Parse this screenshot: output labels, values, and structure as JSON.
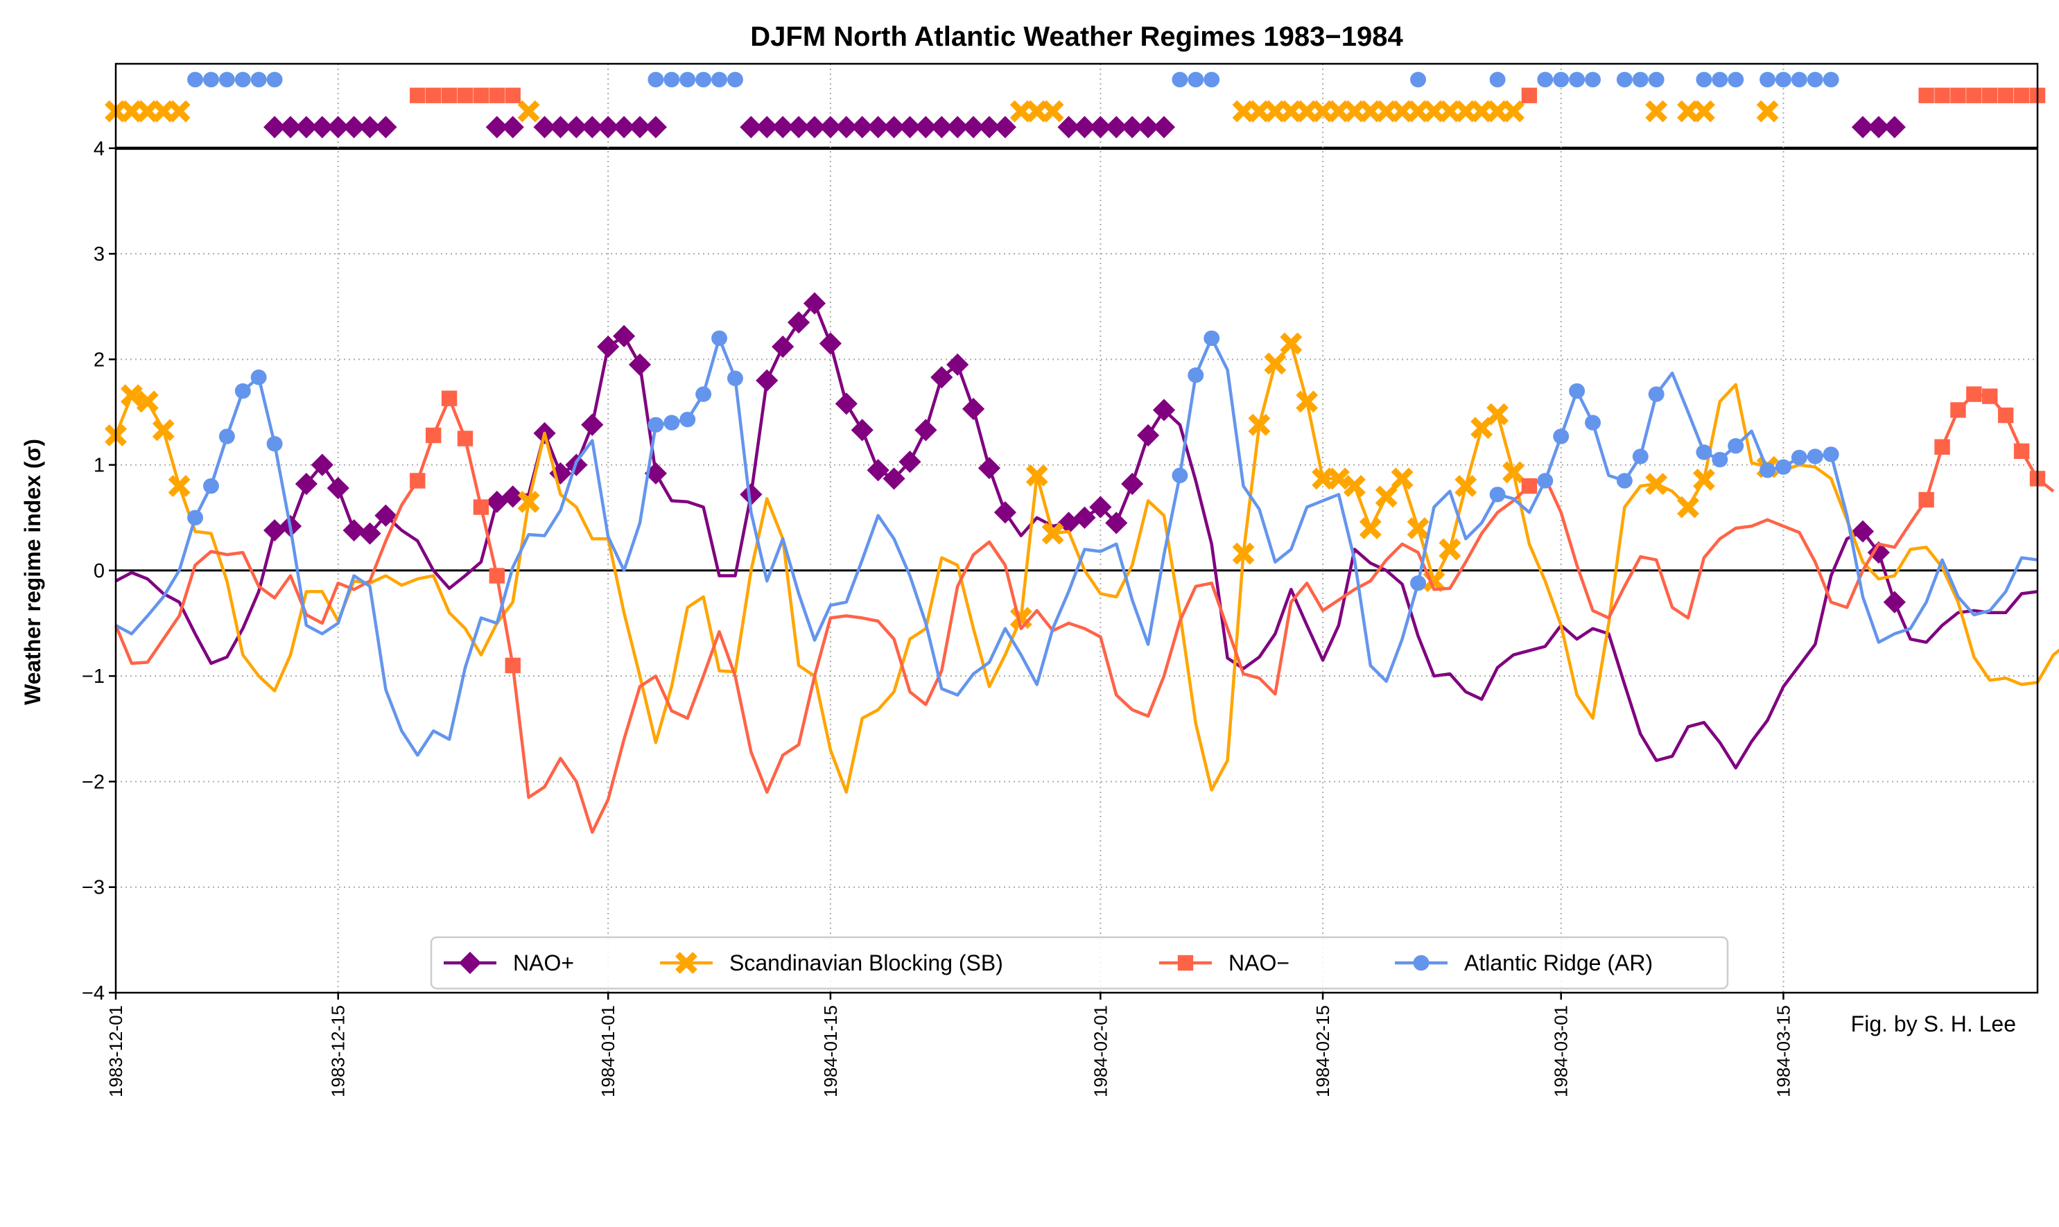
{
  "chart_data": {
    "type": "line",
    "title": "DJFM North Atlantic Weather Regimes 1983−1984",
    "xlabel": "",
    "ylabel": "Weather regime index (σ)",
    "ylim": [
      -4,
      4.8
    ],
    "yticks": [
      -4,
      -3,
      -2,
      -1,
      0,
      1,
      2,
      3,
      4
    ],
    "ytick_labels": [
      "−4",
      "−3",
      "−2",
      "−1",
      "0",
      "1",
      "2",
      "3",
      "4"
    ],
    "x_start": "1983-12-01",
    "n_days": 122,
    "xticks": [
      {
        "day": 0,
        "label": "1983-12-01"
      },
      {
        "day": 14,
        "label": "1983-12-15"
      },
      {
        "day": 31,
        "label": "1984-01-01"
      },
      {
        "day": 45,
        "label": "1984-01-15"
      },
      {
        "day": 62,
        "label": "1984-02-01"
      },
      {
        "day": 76,
        "label": "1984-02-15"
      },
      {
        "day": 91,
        "label": "1984-03-01"
      },
      {
        "day": 105,
        "label": "1984-03-15"
      }
    ],
    "grid": true,
    "legend_position": "bottom-center",
    "annotation": "Fig. by S. H. Lee",
    "series": [
      {
        "name": "NAO+",
        "key": "naop",
        "color": "#800080",
        "marker": "diamond",
        "strip_level": 4.2,
        "values": [
          -0.1,
          -0.02,
          -0.08,
          -0.22,
          -0.3,
          -0.6,
          -0.88,
          -0.82,
          -0.55,
          -0.2,
          0.38,
          0.42,
          0.82,
          1.0,
          0.78,
          0.38,
          0.35,
          0.52,
          0.38,
          0.28,
          0.0,
          -0.17,
          -0.05,
          0.08,
          0.65,
          0.7,
          0.72,
          1.3,
          0.92,
          1.0,
          1.38,
          2.12,
          2.22,
          1.95,
          0.92,
          0.66,
          0.65,
          0.6,
          -0.05,
          -0.05,
          0.72,
          1.8,
          2.12,
          2.35,
          2.53,
          2.15,
          1.58,
          1.33,
          0.95,
          0.87,
          1.03,
          1.33,
          1.83,
          1.95,
          1.53,
          0.97,
          0.55,
          0.33,
          0.5,
          0.42,
          0.45,
          0.5,
          0.6,
          0.45,
          0.82,
          1.28,
          1.52,
          1.38,
          0.85,
          0.25,
          -0.83,
          -0.93,
          -0.82,
          -0.6,
          -0.18,
          -0.52,
          -0.85,
          -0.52,
          0.2,
          0.07,
          0.0,
          -0.13,
          -0.62,
          -1.0,
          -0.98,
          -1.15,
          -1.22,
          -0.92,
          -0.8,
          -0.76,
          -0.72,
          -0.52,
          -0.65,
          -0.55,
          -0.6,
          -1.08,
          -1.55,
          -1.8,
          -1.76,
          -1.48,
          -1.44,
          -1.63,
          -1.87,
          -1.62,
          -1.42,
          -1.1,
          -0.9,
          -0.7,
          -0.05,
          0.3,
          0.37,
          0.17,
          -0.3,
          -0.65,
          -0.68,
          -0.52,
          -0.4,
          -0.38,
          -0.4,
          -0.4,
          -0.22,
          -0.2
        ]
      },
      {
        "name": "Scandinavian Blocking (SB)",
        "key": "sb",
        "color": "#FFA500",
        "marker": "x",
        "strip_level": 4.35,
        "values": [
          1.28,
          1.66,
          1.6,
          1.33,
          0.8,
          0.37,
          0.35,
          -0.1,
          -0.8,
          -1.0,
          -1.14,
          -0.8,
          -0.2,
          -0.2,
          -0.48,
          -0.1,
          -0.12,
          -0.05,
          -0.14,
          -0.08,
          -0.05,
          -0.4,
          -0.55,
          -0.8,
          -0.5,
          -0.3,
          0.65,
          1.3,
          0.72,
          0.6,
          0.3,
          0.3,
          -0.4,
          -1.0,
          -1.63,
          -1.1,
          -0.35,
          -0.25,
          -0.95,
          -0.96,
          0.0,
          0.68,
          0.3,
          -0.9,
          -1.0,
          -1.7,
          -2.1,
          -1.4,
          -1.32,
          -1.15,
          -0.65,
          -0.55,
          0.12,
          0.05,
          -0.55,
          -1.1,
          -0.8,
          -0.45,
          0.9,
          0.35,
          0.37,
          0.0,
          -0.22,
          -0.25,
          0.05,
          0.66,
          0.52,
          -0.4,
          -1.45,
          -2.08,
          -1.8,
          0.16,
          1.38,
          1.96,
          2.15,
          1.6,
          0.87,
          0.87,
          0.8,
          0.4,
          0.7,
          0.87,
          0.4,
          -0.1,
          0.2,
          0.8,
          1.35,
          1.48,
          0.93,
          0.25,
          -0.1,
          -0.52,
          -1.18,
          -1.4,
          -0.5,
          0.6,
          0.8,
          0.82,
          0.75,
          0.6,
          0.86,
          1.6,
          1.76,
          1.02,
          0.98,
          0.95,
          1.0,
          0.98,
          0.87,
          0.48,
          0.08,
          -0.08,
          -0.05,
          0.2,
          0.22,
          0.03,
          -0.3,
          -0.82,
          -1.04,
          -1.02,
          -1.08,
          -1.06,
          -0.8,
          -0.68,
          -0.76
        ]
      },
      {
        "name": "NAO−",
        "key": "naom",
        "color": "#FF6347",
        "marker": "square",
        "strip_level": 4.5,
        "values": [
          -0.52,
          -0.88,
          -0.87,
          -0.65,
          -0.43,
          0.05,
          0.18,
          0.15,
          0.17,
          -0.15,
          -0.26,
          -0.05,
          -0.42,
          -0.5,
          -0.12,
          -0.18,
          -0.1,
          0.28,
          0.62,
          0.85,
          1.28,
          1.63,
          1.25,
          0.6,
          -0.05,
          -0.9,
          -2.15,
          -2.05,
          -1.78,
          -2.0,
          -2.48,
          -2.17,
          -1.6,
          -1.1,
          -1.0,
          -1.33,
          -1.4,
          -1.0,
          -0.58,
          -1.0,
          -1.72,
          -2.1,
          -1.75,
          -1.65,
          -1.0,
          -0.45,
          -0.43,
          -0.45,
          -0.48,
          -0.65,
          -1.15,
          -1.27,
          -0.95,
          -0.15,
          0.15,
          0.27,
          0.05,
          -0.55,
          -0.38,
          -0.57,
          -0.5,
          -0.55,
          -0.63,
          -1.18,
          -1.32,
          -1.38,
          -1.0,
          -0.48,
          -0.15,
          -0.12,
          -0.55,
          -0.98,
          -1.02,
          -1.17,
          -0.3,
          -0.12,
          -0.38,
          -0.28,
          -0.18,
          -0.1,
          0.1,
          0.25,
          0.17,
          -0.18,
          -0.17,
          0.08,
          0.35,
          0.55,
          0.66,
          0.8,
          0.88,
          0.55,
          0.05,
          -0.38,
          -0.45,
          -0.15,
          0.13,
          0.1,
          -0.35,
          -0.45,
          0.12,
          0.3,
          0.4,
          0.42,
          0.48,
          0.42,
          0.36,
          0.08,
          -0.3,
          -0.35,
          0.0,
          0.25,
          0.22,
          0.45,
          0.67,
          1.17,
          1.52,
          1.67,
          1.65,
          1.47,
          1.13,
          0.87,
          0.75
        ]
      },
      {
        "name": "Atlantic Ridge (AR)",
        "key": "ar",
        "color": "#6495ED",
        "marker": "circle",
        "strip_level": 4.65,
        "values": [
          -0.52,
          -0.6,
          -0.43,
          -0.25,
          0.0,
          0.5,
          0.8,
          1.27,
          1.7,
          1.83,
          1.2,
          0.4,
          -0.52,
          -0.6,
          -0.5,
          -0.05,
          -0.15,
          -1.13,
          -1.52,
          -1.75,
          -1.52,
          -1.6,
          -0.92,
          -0.45,
          -0.5,
          0.03,
          0.34,
          0.33,
          0.57,
          1.03,
          1.23,
          0.32,
          0.0,
          0.45,
          1.38,
          1.4,
          1.43,
          1.67,
          2.2,
          1.82,
          0.55,
          -0.1,
          0.3,
          -0.22,
          -0.66,
          -0.33,
          -0.3,
          0.1,
          0.52,
          0.3,
          -0.05,
          -0.5,
          -1.12,
          -1.18,
          -0.98,
          -0.87,
          -0.55,
          -0.8,
          -1.08,
          -0.55,
          -0.2,
          0.2,
          0.18,
          0.25,
          -0.28,
          -0.7,
          0.15,
          0.9,
          1.85,
          2.2,
          1.9,
          0.8,
          0.58,
          0.08,
          0.2,
          0.6,
          0.66,
          0.72,
          0.1,
          -0.9,
          -1.05,
          -0.65,
          -0.12,
          0.6,
          0.75,
          0.3,
          0.45,
          0.72,
          0.68,
          0.55,
          0.85,
          1.27,
          1.7,
          1.4,
          0.9,
          0.85,
          1.08,
          1.67,
          1.87,
          1.5,
          1.12,
          1.05,
          1.18,
          1.32,
          0.95,
          0.98,
          1.07,
          1.08,
          1.1,
          0.52,
          -0.25,
          -0.68,
          -0.6,
          -0.55,
          -0.3,
          0.1,
          -0.25,
          -0.42,
          -0.38,
          -0.2,
          0.12,
          0.1
        ]
      }
    ],
    "regime_strip": {
      "ar": [
        5,
        6,
        7,
        8,
        9,
        10,
        34,
        35,
        36,
        37,
        38,
        39,
        67,
        68,
        69,
        82,
        87,
        90,
        91,
        92,
        93,
        95,
        96,
        97,
        100,
        101,
        102,
        104,
        105,
        106,
        107,
        108
      ],
      "sb": [
        0,
        1,
        2,
        3,
        4,
        26,
        57,
        58,
        59,
        71,
        72,
        73,
        74,
        75,
        76,
        77,
        78,
        79,
        80,
        81,
        82,
        83,
        84,
        85,
        86,
        87,
        88,
        97,
        99,
        100,
        104
      ],
      "naom": [
        19,
        20,
        21,
        22,
        23,
        24,
        25,
        89,
        114,
        115,
        116,
        117,
        118,
        119,
        120,
        121
      ],
      "naop": [
        10,
        11,
        12,
        13,
        14,
        15,
        16,
        17,
        24,
        25,
        27,
        28,
        29,
        30,
        31,
        32,
        33,
        34,
        40,
        41,
        42,
        43,
        44,
        45,
        46,
        47,
        48,
        49,
        50,
        51,
        52,
        53,
        54,
        55,
        56,
        60,
        61,
        62,
        63,
        64,
        65,
        66,
        110,
        111,
        112
      ]
    },
    "strip_separator": 4.0
  }
}
